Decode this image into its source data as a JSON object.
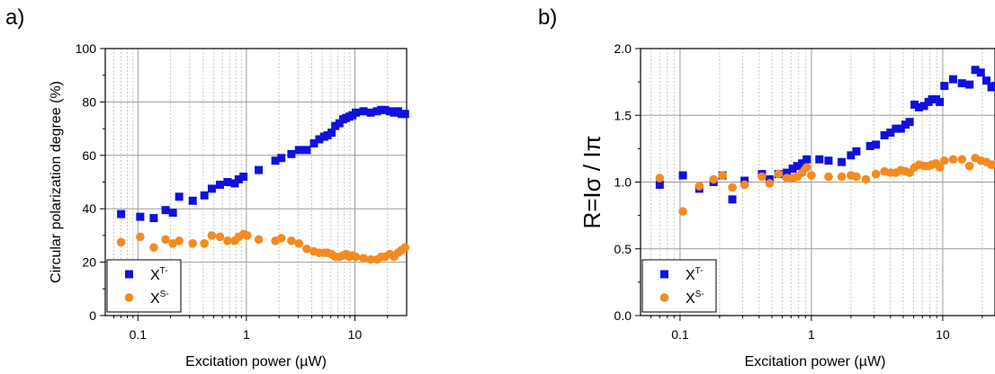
{
  "panels": {
    "a_label": "a)",
    "b_label": "b)"
  },
  "colors": {
    "triplet": "#1010e0",
    "singlet": "#f58a1f",
    "major_grid": "#9a9a9a",
    "minor_grid": "#c8c8c8"
  },
  "chart_data": [
    {
      "type": "scatter",
      "panel": "a)",
      "title": "",
      "xlabel": "Excitation power (µW)",
      "ylabel": "Circular polarization degree (%)",
      "xscale": "log",
      "xlim": [
        0.05,
        30
      ],
      "ylim": [
        0,
        100
      ],
      "xticks": [
        {
          "v": 0.1,
          "label": "0.1"
        },
        {
          "v": 1,
          "label": "1"
        },
        {
          "v": 10,
          "label": "10"
        }
      ],
      "yticks": [
        {
          "v": 0,
          "label": "0"
        },
        {
          "v": 20,
          "label": "20"
        },
        {
          "v": 40,
          "label": "40"
        },
        {
          "v": 60,
          "label": "60"
        },
        {
          "v": 80,
          "label": "80"
        },
        {
          "v": 100,
          "label": "100"
        }
      ],
      "grid": true,
      "legend_position": "bottom-left",
      "series": [
        {
          "name": "X",
          "sup": "T-",
          "marker": "square",
          "points": [
            [
              0.07,
              38
            ],
            [
              0.105,
              37
            ],
            [
              0.14,
              36.5
            ],
            [
              0.18,
              39.5
            ],
            [
              0.21,
              38.5
            ],
            [
              0.24,
              44.5
            ],
            [
              0.32,
              43
            ],
            [
              0.41,
              45
            ],
            [
              0.48,
              47.5
            ],
            [
              0.57,
              49
            ],
            [
              0.67,
              50
            ],
            [
              0.78,
              49.5
            ],
            [
              0.85,
              51
            ],
            [
              0.94,
              52
            ],
            [
              1.3,
              54.5
            ],
            [
              1.85,
              58
            ],
            [
              2.1,
              59
            ],
            [
              2.6,
              60.5
            ],
            [
              3.05,
              62
            ],
            [
              3.6,
              62
            ],
            [
              4.2,
              64.5
            ],
            [
              4.7,
              66
            ],
            [
              5.2,
              67
            ],
            [
              5.6,
              67.5
            ],
            [
              6.1,
              68.5
            ],
            [
              6.6,
              71
            ],
            [
              7.2,
              72
            ],
            [
              7.8,
              73.5
            ],
            [
              8.3,
              74
            ],
            [
              8.9,
              74.5
            ],
            [
              9.5,
              75
            ],
            [
              10.2,
              76
            ],
            [
              12,
              76.5
            ],
            [
              14,
              76
            ],
            [
              16,
              76.5
            ],
            [
              17.5,
              77
            ],
            [
              19,
              77
            ],
            [
              21,
              76.5
            ],
            [
              23,
              76
            ],
            [
              25,
              76.5
            ],
            [
              27,
              75.5
            ],
            [
              29,
              75.5
            ]
          ]
        },
        {
          "name": "X",
          "sup": "S-",
          "marker": "circle",
          "points": [
            [
              0.07,
              27.5
            ],
            [
              0.105,
              29.5
            ],
            [
              0.14,
              25.5
            ],
            [
              0.18,
              28.5
            ],
            [
              0.21,
              27
            ],
            [
              0.24,
              28
            ],
            [
              0.32,
              27
            ],
            [
              0.41,
              27
            ],
            [
              0.48,
              30
            ],
            [
              0.57,
              29.5
            ],
            [
              0.67,
              28
            ],
            [
              0.78,
              28
            ],
            [
              0.85,
              29.5
            ],
            [
              0.94,
              30.5
            ],
            [
              1.02,
              30
            ],
            [
              1.3,
              28.5
            ],
            [
              1.85,
              28
            ],
            [
              2.1,
              29
            ],
            [
              2.6,
              28
            ],
            [
              3.05,
              27
            ],
            [
              3.6,
              25
            ],
            [
              4.2,
              24
            ],
            [
              4.7,
              23.5
            ],
            [
              5.2,
              23.5
            ],
            [
              5.6,
              23.5
            ],
            [
              6.1,
              23
            ],
            [
              6.6,
              22
            ],
            [
              7.2,
              22
            ],
            [
              7.8,
              22.5
            ],
            [
              8.3,
              23
            ],
            [
              8.9,
              22
            ],
            [
              9.5,
              22.5
            ],
            [
              10.2,
              22
            ],
            [
              12,
              21.5
            ],
            [
              14,
              21
            ],
            [
              16,
              21
            ],
            [
              17.5,
              22
            ],
            [
              19,
              22
            ],
            [
              21,
              23
            ],
            [
              23,
              22
            ],
            [
              25,
              23.5
            ],
            [
              27,
              24.5
            ],
            [
              29,
              25.5
            ]
          ]
        }
      ]
    },
    {
      "type": "scatter",
      "panel": "b)",
      "title": "",
      "xlabel": "Excitation power (µW)",
      "ylabel": "R=Iσ / Iπ",
      "xscale": "log",
      "xlim": [
        0.05,
        25
      ],
      "ylim": [
        0,
        2
      ],
      "xticks": [
        {
          "v": 0.1,
          "label": "0.1"
        },
        {
          "v": 1,
          "label": "1"
        },
        {
          "v": 10,
          "label": "10"
        }
      ],
      "yticks": [
        {
          "v": 0,
          "label": "0.0"
        },
        {
          "v": 0.5,
          "label": "0.5"
        },
        {
          "v": 1.0,
          "label": "1.0"
        },
        {
          "v": 1.5,
          "label": "1.5"
        },
        {
          "v": 2.0,
          "label": "2.0"
        }
      ],
      "grid": true,
      "legend_position": "bottom-left",
      "series": [
        {
          "name": "X",
          "sup": "T-",
          "marker": "square",
          "points": [
            [
              0.07,
              0.98
            ],
            [
              0.105,
              1.05
            ],
            [
              0.14,
              0.95
            ],
            [
              0.18,
              1.0
            ],
            [
              0.21,
              1.05
            ],
            [
              0.25,
              0.87
            ],
            [
              0.31,
              1.01
            ],
            [
              0.42,
              1.06
            ],
            [
              0.48,
              1.02
            ],
            [
              0.56,
              1.06
            ],
            [
              0.65,
              1.07
            ],
            [
              0.72,
              1.1
            ],
            [
              0.78,
              1.12
            ],
            [
              0.85,
              1.14
            ],
            [
              0.92,
              1.17
            ],
            [
              1.15,
              1.17
            ],
            [
              1.35,
              1.16
            ],
            [
              1.7,
              1.15
            ],
            [
              2.0,
              1.2
            ],
            [
              2.2,
              1.23
            ],
            [
              2.8,
              1.27
            ],
            [
              3.1,
              1.28
            ],
            [
              3.6,
              1.35
            ],
            [
              4.0,
              1.37
            ],
            [
              4.4,
              1.4
            ],
            [
              4.8,
              1.4
            ],
            [
              5.2,
              1.43
            ],
            [
              5.6,
              1.45
            ],
            [
              6.1,
              1.58
            ],
            [
              6.6,
              1.56
            ],
            [
              7.2,
              1.57
            ],
            [
              7.8,
              1.6
            ],
            [
              8.3,
              1.62
            ],
            [
              8.9,
              1.62
            ],
            [
              9.5,
              1.6
            ],
            [
              10.3,
              1.72
            ],
            [
              12,
              1.77
            ],
            [
              14,
              1.74
            ],
            [
              16,
              1.73
            ],
            [
              17.7,
              1.84
            ],
            [
              19.5,
              1.82
            ],
            [
              21.5,
              1.76
            ],
            [
              23.5,
              1.71
            ],
            [
              25,
              1.72
            ]
          ]
        },
        {
          "name": "X",
          "sup": "S-",
          "marker": "circle",
          "points": [
            [
              0.07,
              1.03
            ],
            [
              0.105,
              0.78
            ],
            [
              0.14,
              0.97
            ],
            [
              0.18,
              1.02
            ],
            [
              0.21,
              1.05
            ],
            [
              0.25,
              0.96
            ],
            [
              0.31,
              0.98
            ],
            [
              0.42,
              1.04
            ],
            [
              0.48,
              0.99
            ],
            [
              0.56,
              1.06
            ],
            [
              0.65,
              1.03
            ],
            [
              0.72,
              1.03
            ],
            [
              0.78,
              1.04
            ],
            [
              0.85,
              1.07
            ],
            [
              0.92,
              1.11
            ],
            [
              1.0,
              1.05
            ],
            [
              1.35,
              1.04
            ],
            [
              1.7,
              1.04
            ],
            [
              2.0,
              1.05
            ],
            [
              2.2,
              1.04
            ],
            [
              2.6,
              1.02
            ],
            [
              3.1,
              1.06
            ],
            [
              3.6,
              1.08
            ],
            [
              4.0,
              1.07
            ],
            [
              4.4,
              1.07
            ],
            [
              4.8,
              1.09
            ],
            [
              5.2,
              1.08
            ],
            [
              5.6,
              1.07
            ],
            [
              6.1,
              1.11
            ],
            [
              6.6,
              1.13
            ],
            [
              7.2,
              1.12
            ],
            [
              7.8,
              1.12
            ],
            [
              8.3,
              1.13
            ],
            [
              8.9,
              1.14
            ],
            [
              9.5,
              1.11
            ],
            [
              10.3,
              1.16
            ],
            [
              12,
              1.17
            ],
            [
              14,
              1.17
            ],
            [
              16,
              1.12
            ],
            [
              17.7,
              1.18
            ],
            [
              19.5,
              1.16
            ],
            [
              21.5,
              1.15
            ],
            [
              23.5,
              1.13
            ],
            [
              25,
              1.13
            ]
          ]
        }
      ]
    }
  ]
}
